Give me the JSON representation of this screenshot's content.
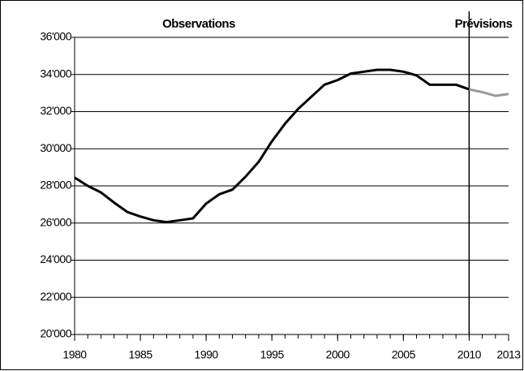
{
  "chart_data": {
    "type": "line",
    "x": [
      1980,
      1981,
      1982,
      1983,
      1984,
      1985,
      1986,
      1987,
      1988,
      1989,
      1990,
      1991,
      1992,
      1993,
      1994,
      1995,
      1996,
      1997,
      1998,
      1999,
      2000,
      2001,
      2002,
      2003,
      2004,
      2005,
      2006,
      2007,
      2008,
      2009,
      2010,
      2011,
      2012,
      2013
    ],
    "series": [
      {
        "name": "Observations",
        "color": "#000000",
        "values": [
          28450,
          28000,
          27650,
          27100,
          26600,
          26350,
          26150,
          26050,
          26150,
          26250,
          27050,
          27550,
          27800,
          28500,
          29300,
          30400,
          31350,
          32150,
          32800,
          33450,
          33700,
          34050,
          34150,
          34250,
          34250,
          34150,
          33950,
          33450,
          33450,
          33450,
          33200,
          null,
          null,
          null
        ]
      },
      {
        "name": "Prévisions",
        "color": "#999999",
        "values": [
          null,
          null,
          null,
          null,
          null,
          null,
          null,
          null,
          null,
          null,
          null,
          null,
          null,
          null,
          null,
          null,
          null,
          null,
          null,
          null,
          null,
          null,
          null,
          null,
          null,
          null,
          null,
          null,
          null,
          null,
          33200,
          33050,
          32850,
          32950
        ]
      }
    ],
    "xlim": [
      1980,
      2013
    ],
    "xticks": [
      1980,
      1985,
      1990,
      1995,
      2000,
      2005,
      2010,
      2013
    ],
    "ylim": [
      20000,
      36000
    ],
    "yticks": [
      {
        "value": 20000,
        "label": "20'000"
      },
      {
        "value": 22000,
        "label": "22'000"
      },
      {
        "value": 24000,
        "label": "24'000"
      },
      {
        "value": 26000,
        "label": "26'000"
      },
      {
        "value": 28000,
        "label": "28'000"
      },
      {
        "value": 30000,
        "label": "30'000"
      },
      {
        "value": 32000,
        "label": "32'000"
      },
      {
        "value": 34000,
        "label": "34'000"
      },
      {
        "value": 36000,
        "label": "36'000"
      }
    ],
    "vline": 2010,
    "grid": true
  }
}
